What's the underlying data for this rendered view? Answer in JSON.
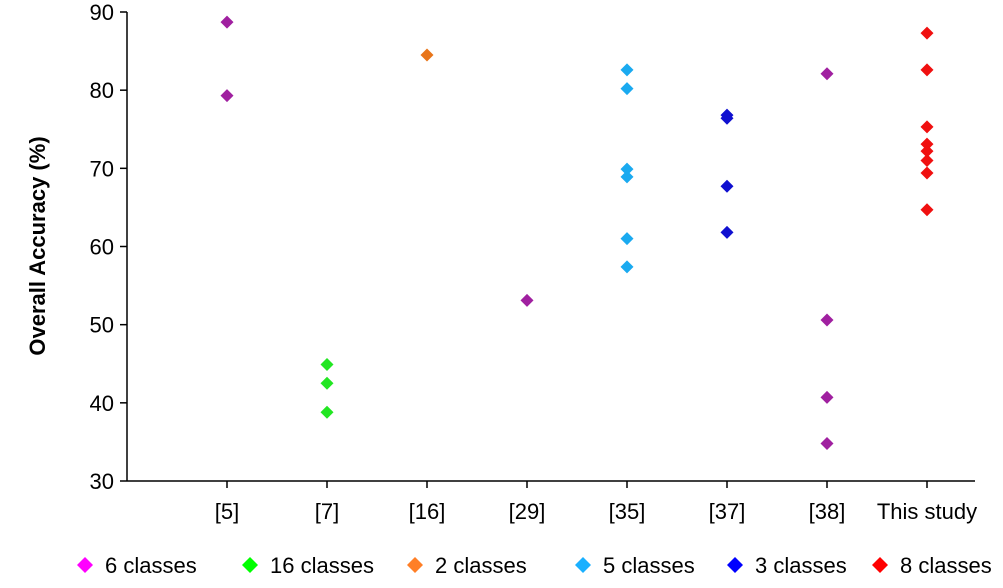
{
  "chart_data": {
    "type": "scatter",
    "title": "",
    "xlabel": "",
    "ylabel": "Overall Accuracy (%)",
    "ylim": [
      30,
      90
    ],
    "yticks": [
      30,
      40,
      50,
      60,
      70,
      80,
      90
    ],
    "categories": [
      "[5]",
      "[7]",
      "[16]",
      "[29]",
      "[35]",
      "[37]",
      "[38]",
      "This study"
    ],
    "grid": false,
    "legend_position": "bottom",
    "series": [
      {
        "name": "6 classes",
        "legend_color": "#ff00ff",
        "color": "#a020a0",
        "points": [
          [
            "[5]",
            88.7
          ],
          [
            "[5]",
            79.3
          ],
          [
            "[29]",
            53.1
          ],
          [
            "[38]",
            82.1
          ],
          [
            "[38]",
            50.6
          ],
          [
            "[38]",
            40.7
          ],
          [
            "[38]",
            34.8
          ]
        ]
      },
      {
        "name": "16 classes",
        "legend_color": "#00ff00",
        "color": "#22e622",
        "points": [
          [
            "[7]",
            44.9
          ],
          [
            "[7]",
            42.5
          ],
          [
            "[7]",
            38.8
          ]
        ]
      },
      {
        "name": "2 classes",
        "legend_color": "#ff7f27",
        "color": "#e8751a",
        "points": [
          [
            "[16]",
            84.5
          ]
        ]
      },
      {
        "name": "5 classes",
        "legend_color": "#1ab0ff",
        "color": "#1aaaf0",
        "points": [
          [
            "[35]",
            82.6
          ],
          [
            "[35]",
            80.2
          ],
          [
            "[35]",
            69.9
          ],
          [
            "[35]",
            68.9
          ],
          [
            "[35]",
            61.0
          ],
          [
            "[35]",
            57.4
          ]
        ]
      },
      {
        "name": "3 classes",
        "legend_color": "#0000ff",
        "color": "#1010d0",
        "points": [
          [
            "[37]",
            76.8
          ],
          [
            "[37]",
            76.4
          ],
          [
            "[37]",
            67.7
          ],
          [
            "[37]",
            61.8
          ]
        ]
      },
      {
        "name": "8 classes",
        "legend_color": "#ff0000",
        "color": "#f01010",
        "points": [
          [
            "This study",
            87.3
          ],
          [
            "This study",
            82.6
          ],
          [
            "This study",
            75.3
          ],
          [
            "This study",
            73.1
          ],
          [
            "This study",
            72.2
          ],
          [
            "This study",
            71.0
          ],
          [
            "This study",
            69.4
          ],
          [
            "This study",
            64.7
          ]
        ]
      }
    ]
  }
}
